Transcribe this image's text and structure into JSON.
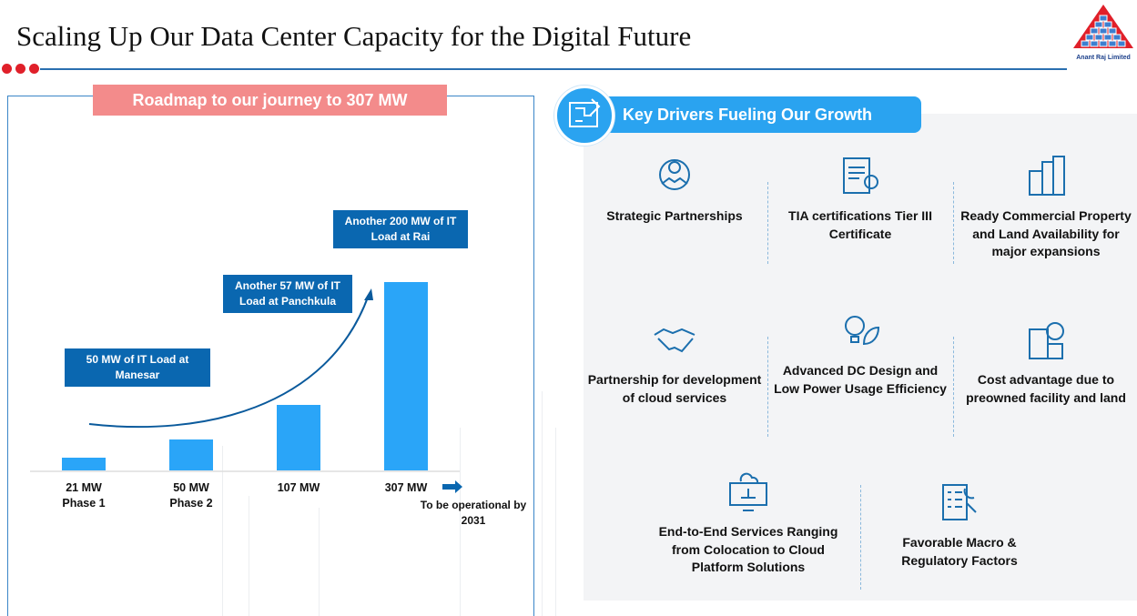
{
  "title": "Scaling Up Our Data Center Capacity for the Digital Future",
  "logo": {
    "text": "Anant Raj Limited",
    "colors": {
      "red": "#e0202a",
      "blue": "#2a6fb0"
    }
  },
  "left": {
    "banner": "Roadmap to our journey to 307 MW",
    "callouts": [
      "50 MW of IT Load at Manesar",
      "Another 57 MW of IT Load at Panchkula",
      "Another 200 MW of IT Load at Rai"
    ],
    "bars": [
      {
        "value": 21,
        "label": "21 MW",
        "sub": "Phase 1"
      },
      {
        "value": 50,
        "label": "50 MW",
        "sub": "Phase 2"
      },
      {
        "value": 107,
        "label": "107 MW",
        "sub": ""
      },
      {
        "value": 307,
        "label": "307 MW",
        "sub": ""
      }
    ],
    "note": "To be operational by 2031"
  },
  "right": {
    "header": "Key Drivers Fueling Our Growth",
    "drivers": [
      {
        "label": "Strategic Partnerships",
        "icon": "gear-handshake-icon"
      },
      {
        "label": "TIA certifications Tier III Certificate",
        "icon": "certificate-icon"
      },
      {
        "label": "Ready Commercial Property and Land Availability for major expansions",
        "icon": "buildings-icon"
      },
      {
        "label": "Partnership for development of cloud services",
        "icon": "handshake-icon"
      },
      {
        "label": "Advanced DC Design and Low Power Usage Efficiency",
        "icon": "bulb-leaf-icon"
      },
      {
        "label": "Cost advantage due to preowned facility and land",
        "icon": "building-gear-icon"
      },
      {
        "label": "End-to-End Services Ranging from Colocation to Cloud Platform Solutions",
        "icon": "cloud-monitor-icon"
      },
      {
        "label": "Favorable Macro & Regulatory Factors",
        "icon": "checklist-gavel-icon"
      }
    ]
  },
  "colors": {
    "accent": "#2aa3f0",
    "dark": "#0a67b0",
    "banner": "#f38b8b",
    "bar": "#2aa5f8"
  }
}
